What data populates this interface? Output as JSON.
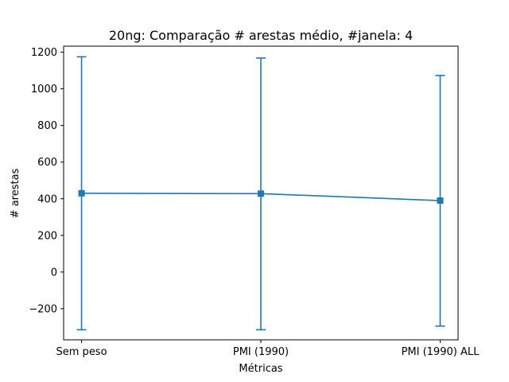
{
  "chart_data": {
    "type": "line",
    "title": "20ng: Comparação # arestas médio, #janela: 4",
    "xlabel": "Métricas",
    "ylabel": "# arestas",
    "categories": [
      "Sem peso",
      "PMI (1990)",
      "PMI (1990) ALL"
    ],
    "series": [
      {
        "values": [
          430,
          428,
          390
        ],
        "error_lower": [
          -315,
          -315,
          -295
        ],
        "error_upper": [
          1175,
          1168,
          1073
        ]
      }
    ],
    "ylim": [
      -370,
      1233
    ],
    "yticks": [
      -200,
      0,
      200,
      400,
      600,
      800,
      1000,
      1200
    ],
    "ytick_labels": [
      "−200",
      "0",
      "200",
      "400",
      "600",
      "800",
      "1000",
      "1200"
    ],
    "grid": false,
    "marker": "square",
    "colors": {
      "series": "#1f77b4",
      "axes": "#000000"
    }
  }
}
